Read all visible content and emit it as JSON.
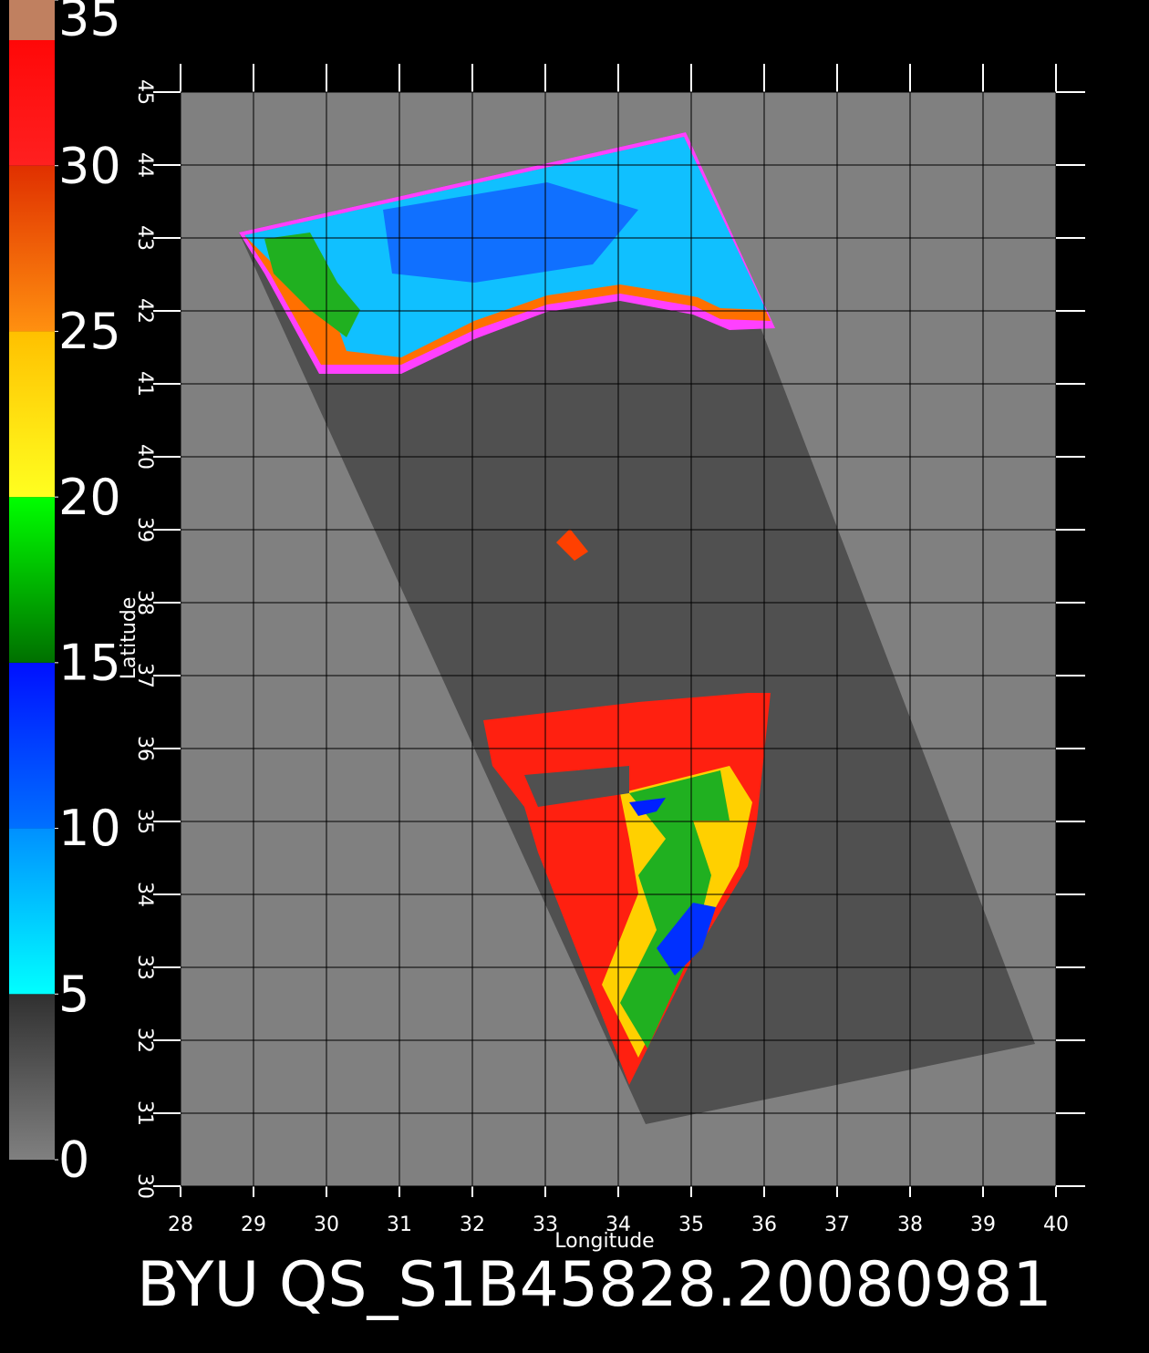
{
  "chart_data": {
    "type": "map",
    "title": "BYU QS_S1B45828.20080981",
    "x_label": "Longitude",
    "y_label": "Latitude",
    "xlim": [
      28,
      40
    ],
    "xticks": [
      28,
      29,
      30,
      31,
      32,
      33,
      34,
      35,
      36,
      37,
      38,
      39,
      40
    ],
    "ylim": [
      30,
      45
    ],
    "yticks": [
      30,
      31,
      32,
      33,
      34,
      35,
      36,
      37,
      38,
      39,
      40,
      41,
      42,
      43,
      44,
      45
    ],
    "grid": true,
    "colorbar": {
      "lim": [
        0,
        35
      ],
      "ticks": [
        0,
        5,
        10,
        15,
        20,
        25,
        30,
        35
      ],
      "colors": [
        [
          "#808080",
          "#303030"
        ],
        [
          "#00ffff",
          "#0090ff"
        ],
        [
          "#0070ff",
          "#0010ff"
        ],
        [
          "#007000",
          "#00ff00"
        ],
        [
          "#ffff20",
          "#ffc000"
        ],
        [
          "#ff9010",
          "#e03000"
        ],
        [
          "#ff2020",
          "#ff0000"
        ]
      ]
    }
  }
}
